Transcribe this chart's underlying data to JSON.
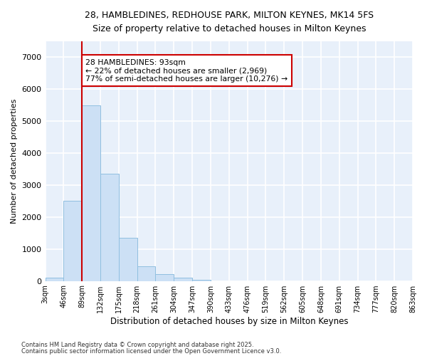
{
  "title": "28, HAMBLEDINES, REDHOUSE PARK, MILTON KEYNES, MK14 5FS",
  "subtitle": "Size of property relative to detached houses in Milton Keynes",
  "xlabel": "Distribution of detached houses by size in Milton Keynes",
  "ylabel": "Number of detached properties",
  "bar_color": "#cce0f5",
  "bar_edge_color": "#90bfe0",
  "background_color": "#e8f0fa",
  "grid_color": "#ffffff",
  "bins": [
    "3sqm",
    "46sqm",
    "89sqm",
    "132sqm",
    "175sqm",
    "218sqm",
    "261sqm",
    "304sqm",
    "347sqm",
    "390sqm",
    "433sqm",
    "476sqm",
    "519sqm",
    "562sqm",
    "605sqm",
    "648sqm",
    "691sqm",
    "734sqm",
    "777sqm",
    "820sqm",
    "863sqm"
  ],
  "values": [
    100,
    2500,
    5500,
    3350,
    1350,
    450,
    220,
    100,
    30,
    0,
    0,
    0,
    0,
    0,
    0,
    0,
    0,
    0,
    0,
    0
  ],
  "red_line_bin": 2,
  "annotation_text": "28 HAMBLEDINES: 93sqm\n← 22% of detached houses are smaller (2,969)\n77% of semi-detached houses are larger (10,276) →",
  "annotation_box_color": "#ffffff",
  "annotation_border_color": "#cc0000",
  "red_line_color": "#cc0000",
  "ylim": [
    0,
    7500
  ],
  "yticks": [
    0,
    1000,
    2000,
    3000,
    4000,
    5000,
    6000,
    7000
  ],
  "footer1": "Contains HM Land Registry data © Crown copyright and database right 2025.",
  "footer2": "Contains public sector information licensed under the Open Government Licence v3.0.",
  "fig_width": 6.0,
  "fig_height": 5.0,
  "dpi": 100
}
